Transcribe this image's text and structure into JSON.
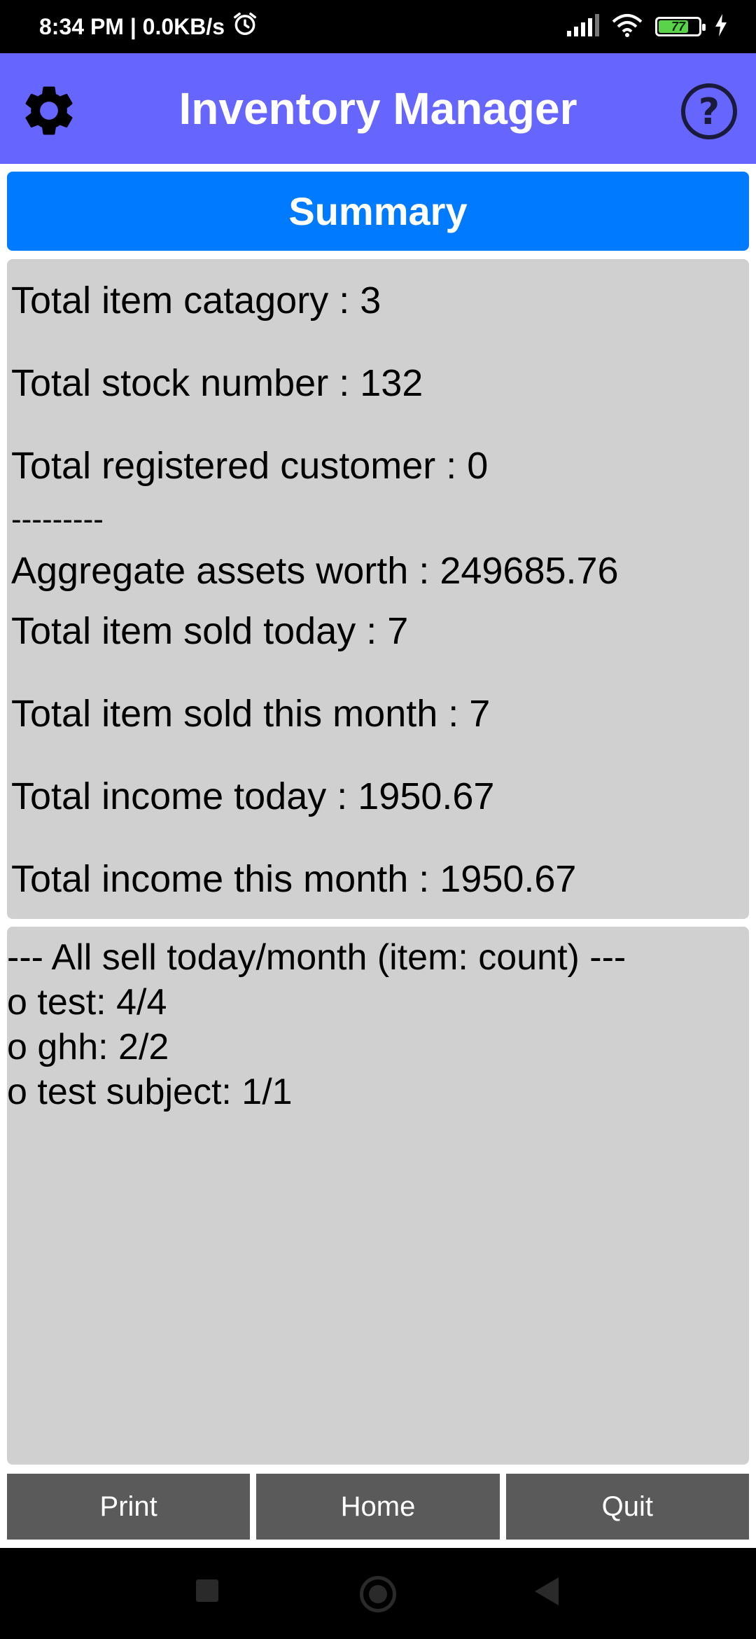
{
  "status_bar": {
    "time_speed": "8:34 PM | 0.0KB/s",
    "battery_level": 77,
    "battery_text": "77"
  },
  "header": {
    "title": "Inventory Manager",
    "settings_icon": "gear-icon",
    "help_icon": "help-icon",
    "background_color": "#6666ff"
  },
  "summary_tab": {
    "label": "Summary",
    "color": "#007bff"
  },
  "stats": [
    "Total item catagory : 3",
    "Total stock number : 132",
    "Total registered customer : 0",
    "---------",
    "Aggregate assets worth : 249685.76",
    "Total item sold today : 7",
    "Total item sold this month : 7",
    "Total income today : 1950.67",
    "Total income this month : 1950.67"
  ],
  "sales": {
    "header": "--- All sell today/month (item: count) ---",
    "items": [
      "o  test: 4/4",
      "o  ghh: 2/2",
      "o  test subject: 1/1"
    ]
  },
  "buttons": {
    "print": "Print",
    "home": "Home",
    "quit": "Quit"
  }
}
